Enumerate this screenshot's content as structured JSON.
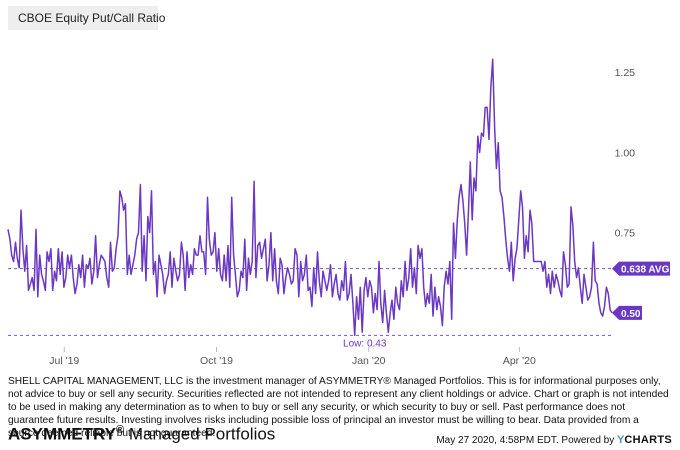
{
  "colors": {
    "series": "#6a38c2",
    "low_label": "#6a38c2",
    "axis_text": "#555555",
    "dashed": "#7a55c8"
  },
  "chart_data": {
    "type": "line",
    "legend": "CBOE Equity Put/Call Ratio",
    "series": [
      {
        "name": "CBOE Equity Put/Call Ratio",
        "values": [
          0.76,
          0.73,
          0.68,
          0.66,
          0.72,
          0.67,
          0.64,
          0.82,
          0.7,
          0.63,
          0.71,
          0.57,
          0.59,
          0.61,
          0.57,
          0.76,
          0.55,
          0.68,
          0.62,
          0.6,
          0.57,
          0.69,
          0.66,
          0.7,
          0.57,
          0.63,
          0.6,
          0.7,
          0.62,
          0.69,
          0.58,
          0.61,
          0.68,
          0.64,
          0.68,
          0.61,
          0.56,
          0.59,
          0.65,
          0.61,
          0.68,
          0.58,
          0.65,
          0.64,
          0.67,
          0.59,
          0.63,
          0.74,
          0.61,
          0.65,
          0.68,
          0.67,
          0.66,
          0.61,
          0.58,
          0.72,
          0.63,
          0.64,
          0.7,
          0.74,
          0.88,
          0.86,
          0.82,
          0.84,
          0.62,
          0.68,
          0.62,
          0.65,
          0.68,
          0.73,
          0.75,
          0.9,
          0.63,
          0.74,
          0.6,
          0.8,
          0.75,
          0.88,
          0.62,
          0.66,
          0.55,
          0.68,
          0.65,
          0.62,
          0.56,
          0.6,
          0.62,
          0.69,
          0.58,
          0.67,
          0.63,
          0.6,
          0.62,
          0.72,
          0.68,
          0.57,
          0.69,
          0.61,
          0.65,
          0.62,
          0.7,
          0.68,
          0.68,
          0.74,
          0.69,
          0.69,
          0.62,
          0.86,
          0.73,
          0.68,
          0.69,
          0.75,
          0.63,
          0.7,
          0.62,
          0.6,
          0.68,
          0.6,
          0.71,
          0.58,
          0.86,
          0.68,
          0.62,
          0.55,
          0.57,
          0.63,
          0.61,
          0.73,
          0.57,
          0.67,
          0.62,
          0.66,
          0.91,
          0.61,
          0.71,
          0.72,
          0.67,
          0.7,
          0.73,
          0.6,
          0.65,
          0.75,
          0.6,
          0.7,
          0.6,
          0.56,
          0.67,
          0.65,
          0.56,
          0.61,
          0.64,
          0.62,
          0.59,
          0.6,
          0.7,
          0.68,
          0.55,
          0.66,
          0.6,
          0.62,
          0.68,
          0.57,
          0.58,
          0.52,
          0.64,
          0.56,
          0.69,
          0.6,
          0.55,
          0.63,
          0.6,
          0.57,
          0.6,
          0.65,
          0.55,
          0.59,
          0.62,
          0.56,
          0.54,
          0.6,
          0.57,
          0.66,
          0.54,
          0.56,
          0.62,
          0.53,
          0.43,
          0.55,
          0.48,
          0.58,
          0.44,
          0.57,
          0.61,
          0.55,
          0.6,
          0.58,
          0.5,
          0.56,
          0.51,
          0.66,
          0.53,
          0.47,
          0.57,
          0.5,
          0.44,
          0.5,
          0.54,
          0.48,
          0.58,
          0.53,
          0.51,
          0.6,
          0.55,
          0.66,
          0.57,
          0.61,
          0.7,
          0.58,
          0.64,
          0.56,
          0.71,
          0.67,
          0.7,
          0.58,
          0.52,
          0.56,
          0.53,
          0.62,
          0.49,
          0.58,
          0.51,
          0.55,
          0.52,
          0.46,
          0.58,
          0.63,
          0.59,
          0.66,
          0.48,
          0.78,
          0.67,
          0.79,
          0.86,
          0.9,
          0.85,
          0.78,
          0.68,
          0.82,
          0.97,
          0.79,
          0.92,
          0.88,
          1.05,
          1.0,
          1.06,
          1.05,
          1.14,
          1.14,
          1.04,
          1.2,
          1.29,
          1.08,
          0.95,
          1.03,
          0.88,
          0.86,
          0.8,
          0.73,
          0.67,
          0.63,
          0.72,
          0.6,
          0.67,
          0.7,
          0.79,
          0.88,
          0.83,
          0.67,
          0.74,
          0.69,
          0.82,
          0.78,
          0.66,
          0.66,
          0.66,
          0.66,
          0.66,
          0.63,
          0.66,
          0.58,
          0.62,
          0.56,
          0.63,
          0.58,
          0.62,
          0.6,
          0.57,
          0.55,
          0.69,
          0.65,
          0.58,
          0.59,
          0.83,
          0.77,
          0.66,
          0.61,
          0.64,
          0.58,
          0.53,
          0.62,
          0.58,
          0.54,
          0.55,
          0.58,
          0.72,
          0.6,
          0.59,
          0.53,
          0.5,
          0.49,
          0.52,
          0.58,
          0.56,
          0.51,
          0.5
        ]
      }
    ],
    "x_start": "2019-05-28",
    "x_end": "2020-05-27",
    "x_ticks": [
      {
        "date": "2019-07-01",
        "label": "Jul '19"
      },
      {
        "date": "2019-10-01",
        "label": "Oct '19"
      },
      {
        "date": "2020-01-01",
        "label": "Jan '20"
      },
      {
        "date": "2020-04-01",
        "label": "Apr '20"
      }
    ],
    "y_ticks": [
      {
        "value": 1.25,
        "label": "1.25"
      },
      {
        "value": 1.0,
        "label": "1.00"
      },
      {
        "value": 0.75,
        "label": "0.75"
      }
    ],
    "ylim": [
      0.4,
      1.35
    ],
    "average": {
      "value": 0.638,
      "label": "0.638 AVG"
    },
    "last": {
      "value": 0.5,
      "label": "0.50"
    },
    "low": {
      "value": 0.43,
      "label": "Low: 0.43"
    },
    "grid": false
  },
  "footer": {
    "disclaimer": "SHELL CAPITAL MANAGEMENT, LLC is the investment manager of ASYMMETRY® Managed Portfolios. This is for informational purposes only, not advice to buy or sell any security. Securities reflected are not intended to represent any client holdings or advice. Chart or graph is not intended to be used in making any determination as to when to buy or sell any security, or which security to buy or sell. Past performance does not guarantee future results. Investing involves risks including possible loss of principal an investor must be willing to bear. Data provided from a source deemed reliable but is not guaranteed.",
    "brand_strong": "ASYMMETRY",
    "brand_reg": "®",
    "brand_rest": " Managed Portfolios",
    "timestamp": "May 27 2020, 4:58PM EDT.",
    "powered_by": " Powered by ",
    "ycharts_y": "Y",
    "ycharts_rest": "CHARTS"
  }
}
